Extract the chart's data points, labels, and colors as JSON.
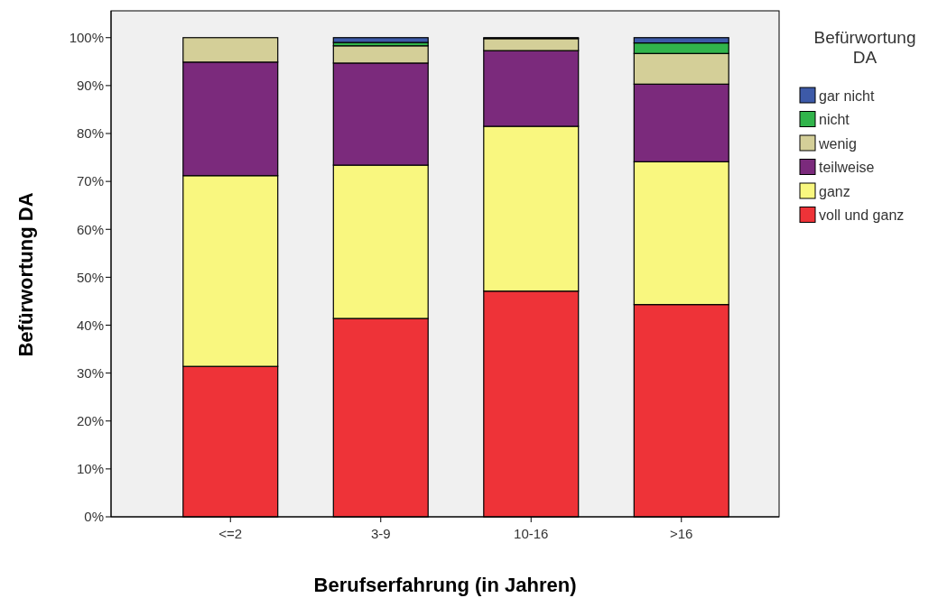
{
  "chart_data": {
    "type": "bar",
    "stacked": true,
    "xlabel": "Berufserfahrung (in Jahren)",
    "ylabel": "Befürwortung DA",
    "legend_title": "Befürwortung DA",
    "legend": "right",
    "categories": [
      "<=2",
      "3-9",
      "10-16",
      ">16"
    ],
    "ylim": [
      0,
      105.6
    ],
    "yticks": [
      {
        "value": 0,
        "label": "0%"
      },
      {
        "value": 10,
        "label": "10%"
      },
      {
        "value": 20,
        "label": "20%"
      },
      {
        "value": 30,
        "label": "30%"
      },
      {
        "value": 40,
        "label": "40%"
      },
      {
        "value": 50,
        "label": "50%"
      },
      {
        "value": 60,
        "label": "60%"
      },
      {
        "value": 70,
        "label": "70%"
      },
      {
        "value": 80,
        "label": "80%"
      },
      {
        "value": 90,
        "label": "90%"
      },
      {
        "value": 100,
        "label": "100%"
      }
    ],
    "series": [
      {
        "name": "voll und ganz",
        "color": "#ee3338",
        "values": [
          31.4,
          41.4,
          47.1,
          44.3
        ]
      },
      {
        "name": "ganz",
        "color": "#f9f77f",
        "values": [
          39.8,
          32.0,
          34.4,
          29.8
        ]
      },
      {
        "name": "teilweise",
        "color": "#7b2a7c",
        "values": [
          23.7,
          21.3,
          15.8,
          16.2
        ]
      },
      {
        "name": "wenig",
        "color": "#d4cf98",
        "values": [
          5.1,
          3.6,
          2.5,
          6.4
        ]
      },
      {
        "name": "nicht",
        "color": "#31b44b",
        "values": [
          0,
          0.7,
          0,
          2.2
        ]
      },
      {
        "name": "gar nicht",
        "color": "#3d5aa8",
        "values": [
          0,
          1.0,
          0.2,
          1.1
        ]
      }
    ]
  }
}
